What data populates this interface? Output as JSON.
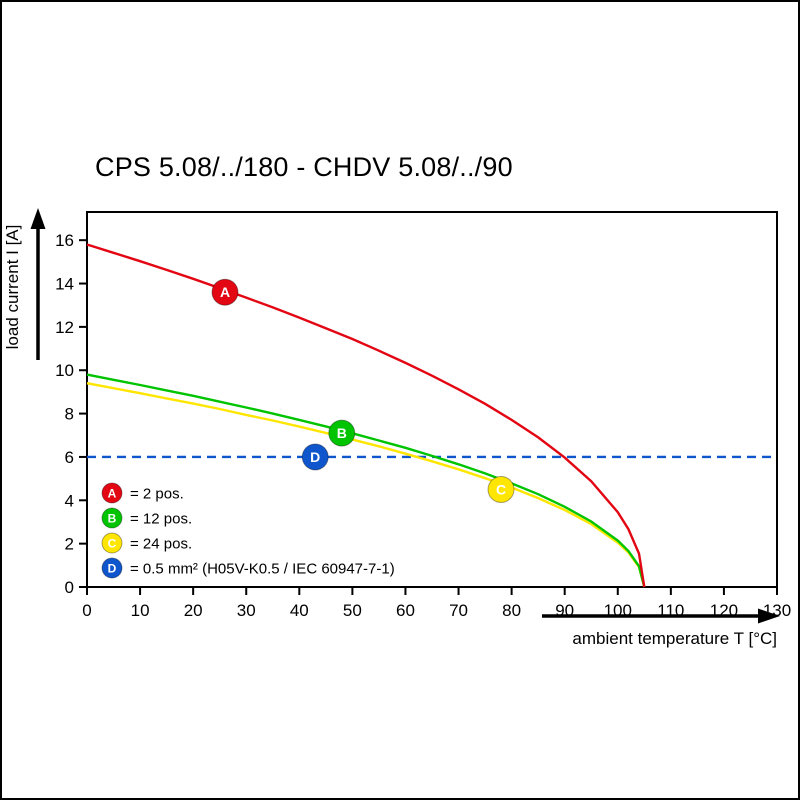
{
  "title": "CPS 5.08/../180 - CHDV 5.08/../90",
  "chart_data": {
    "type": "line",
    "title": "CPS 5.08/../180 - CHDV 5.08/../90",
    "xlabel": "ambient temperature T [°C]",
    "ylabel": "load current I [A]",
    "xlim": [
      0,
      130
    ],
    "ylim": [
      0,
      17.3
    ],
    "x_ticks": [
      0,
      10,
      20,
      30,
      40,
      50,
      60,
      70,
      80,
      90,
      100,
      110,
      120,
      130
    ],
    "y_ticks": [
      0,
      2,
      4,
      6,
      8,
      10,
      12,
      14,
      16
    ],
    "grid": false,
    "legend_position": "bottom-left-inside",
    "series": [
      {
        "name": "A",
        "legend_label": "= 2 pos.",
        "color": "#e30613",
        "style": "solid",
        "x": [
          0,
          5,
          10,
          15,
          20,
          25,
          30,
          35,
          40,
          45,
          50,
          55,
          60,
          65,
          70,
          75,
          80,
          85,
          90,
          95,
          100,
          102,
          104,
          105
        ],
        "values": [
          15.8,
          15.42,
          15.03,
          14.63,
          14.22,
          13.79,
          13.35,
          12.9,
          12.43,
          11.94,
          11.44,
          10.9,
          10.34,
          9.75,
          9.12,
          8.45,
          7.71,
          6.9,
          5.97,
          4.88,
          3.45,
          2.67,
          1.54,
          0
        ],
        "marker": {
          "x": 26,
          "y": 13.6
        }
      },
      {
        "name": "B",
        "legend_label": "= 12 pos.",
        "color": "#00c400",
        "style": "solid",
        "x": [
          0,
          5,
          10,
          15,
          20,
          25,
          30,
          35,
          40,
          45,
          50,
          55,
          60,
          65,
          70,
          75,
          80,
          85,
          90,
          95,
          100,
          102,
          104,
          105
        ],
        "values": [
          9.8,
          9.56,
          9.32,
          9.07,
          8.82,
          8.55,
          8.28,
          8.0,
          7.71,
          7.41,
          7.09,
          6.76,
          6.42,
          6.05,
          5.66,
          5.24,
          4.78,
          4.28,
          3.7,
          3.02,
          2.14,
          1.66,
          0.96,
          0
        ],
        "marker": {
          "x": 48,
          "y": 7.1
        }
      },
      {
        "name": "C",
        "legend_label": "= 24 pos.",
        "color": "#ffe600",
        "style": "solid",
        "x": [
          0,
          5,
          10,
          15,
          20,
          25,
          30,
          35,
          40,
          45,
          50,
          55,
          60,
          65,
          70,
          75,
          80,
          85,
          90,
          95,
          100,
          102,
          104,
          105
        ],
        "values": [
          9.4,
          9.17,
          8.94,
          8.7,
          8.46,
          8.21,
          7.94,
          7.68,
          7.4,
          7.11,
          6.8,
          6.49,
          6.15,
          5.8,
          5.43,
          5.02,
          4.59,
          4.1,
          3.55,
          2.9,
          2.05,
          1.59,
          0.92,
          0
        ],
        "marker": {
          "x": 78,
          "y": 4.5
        }
      },
      {
        "name": "D",
        "legend_label": "= 0.5 mm² (H05V-K0.5 / IEC 60947-7-1)",
        "color": "#0f56cd",
        "style": "dashed",
        "x": [
          0,
          130
        ],
        "values": [
          6,
          6
        ],
        "marker": {
          "x": 43,
          "y": 6
        }
      }
    ]
  }
}
